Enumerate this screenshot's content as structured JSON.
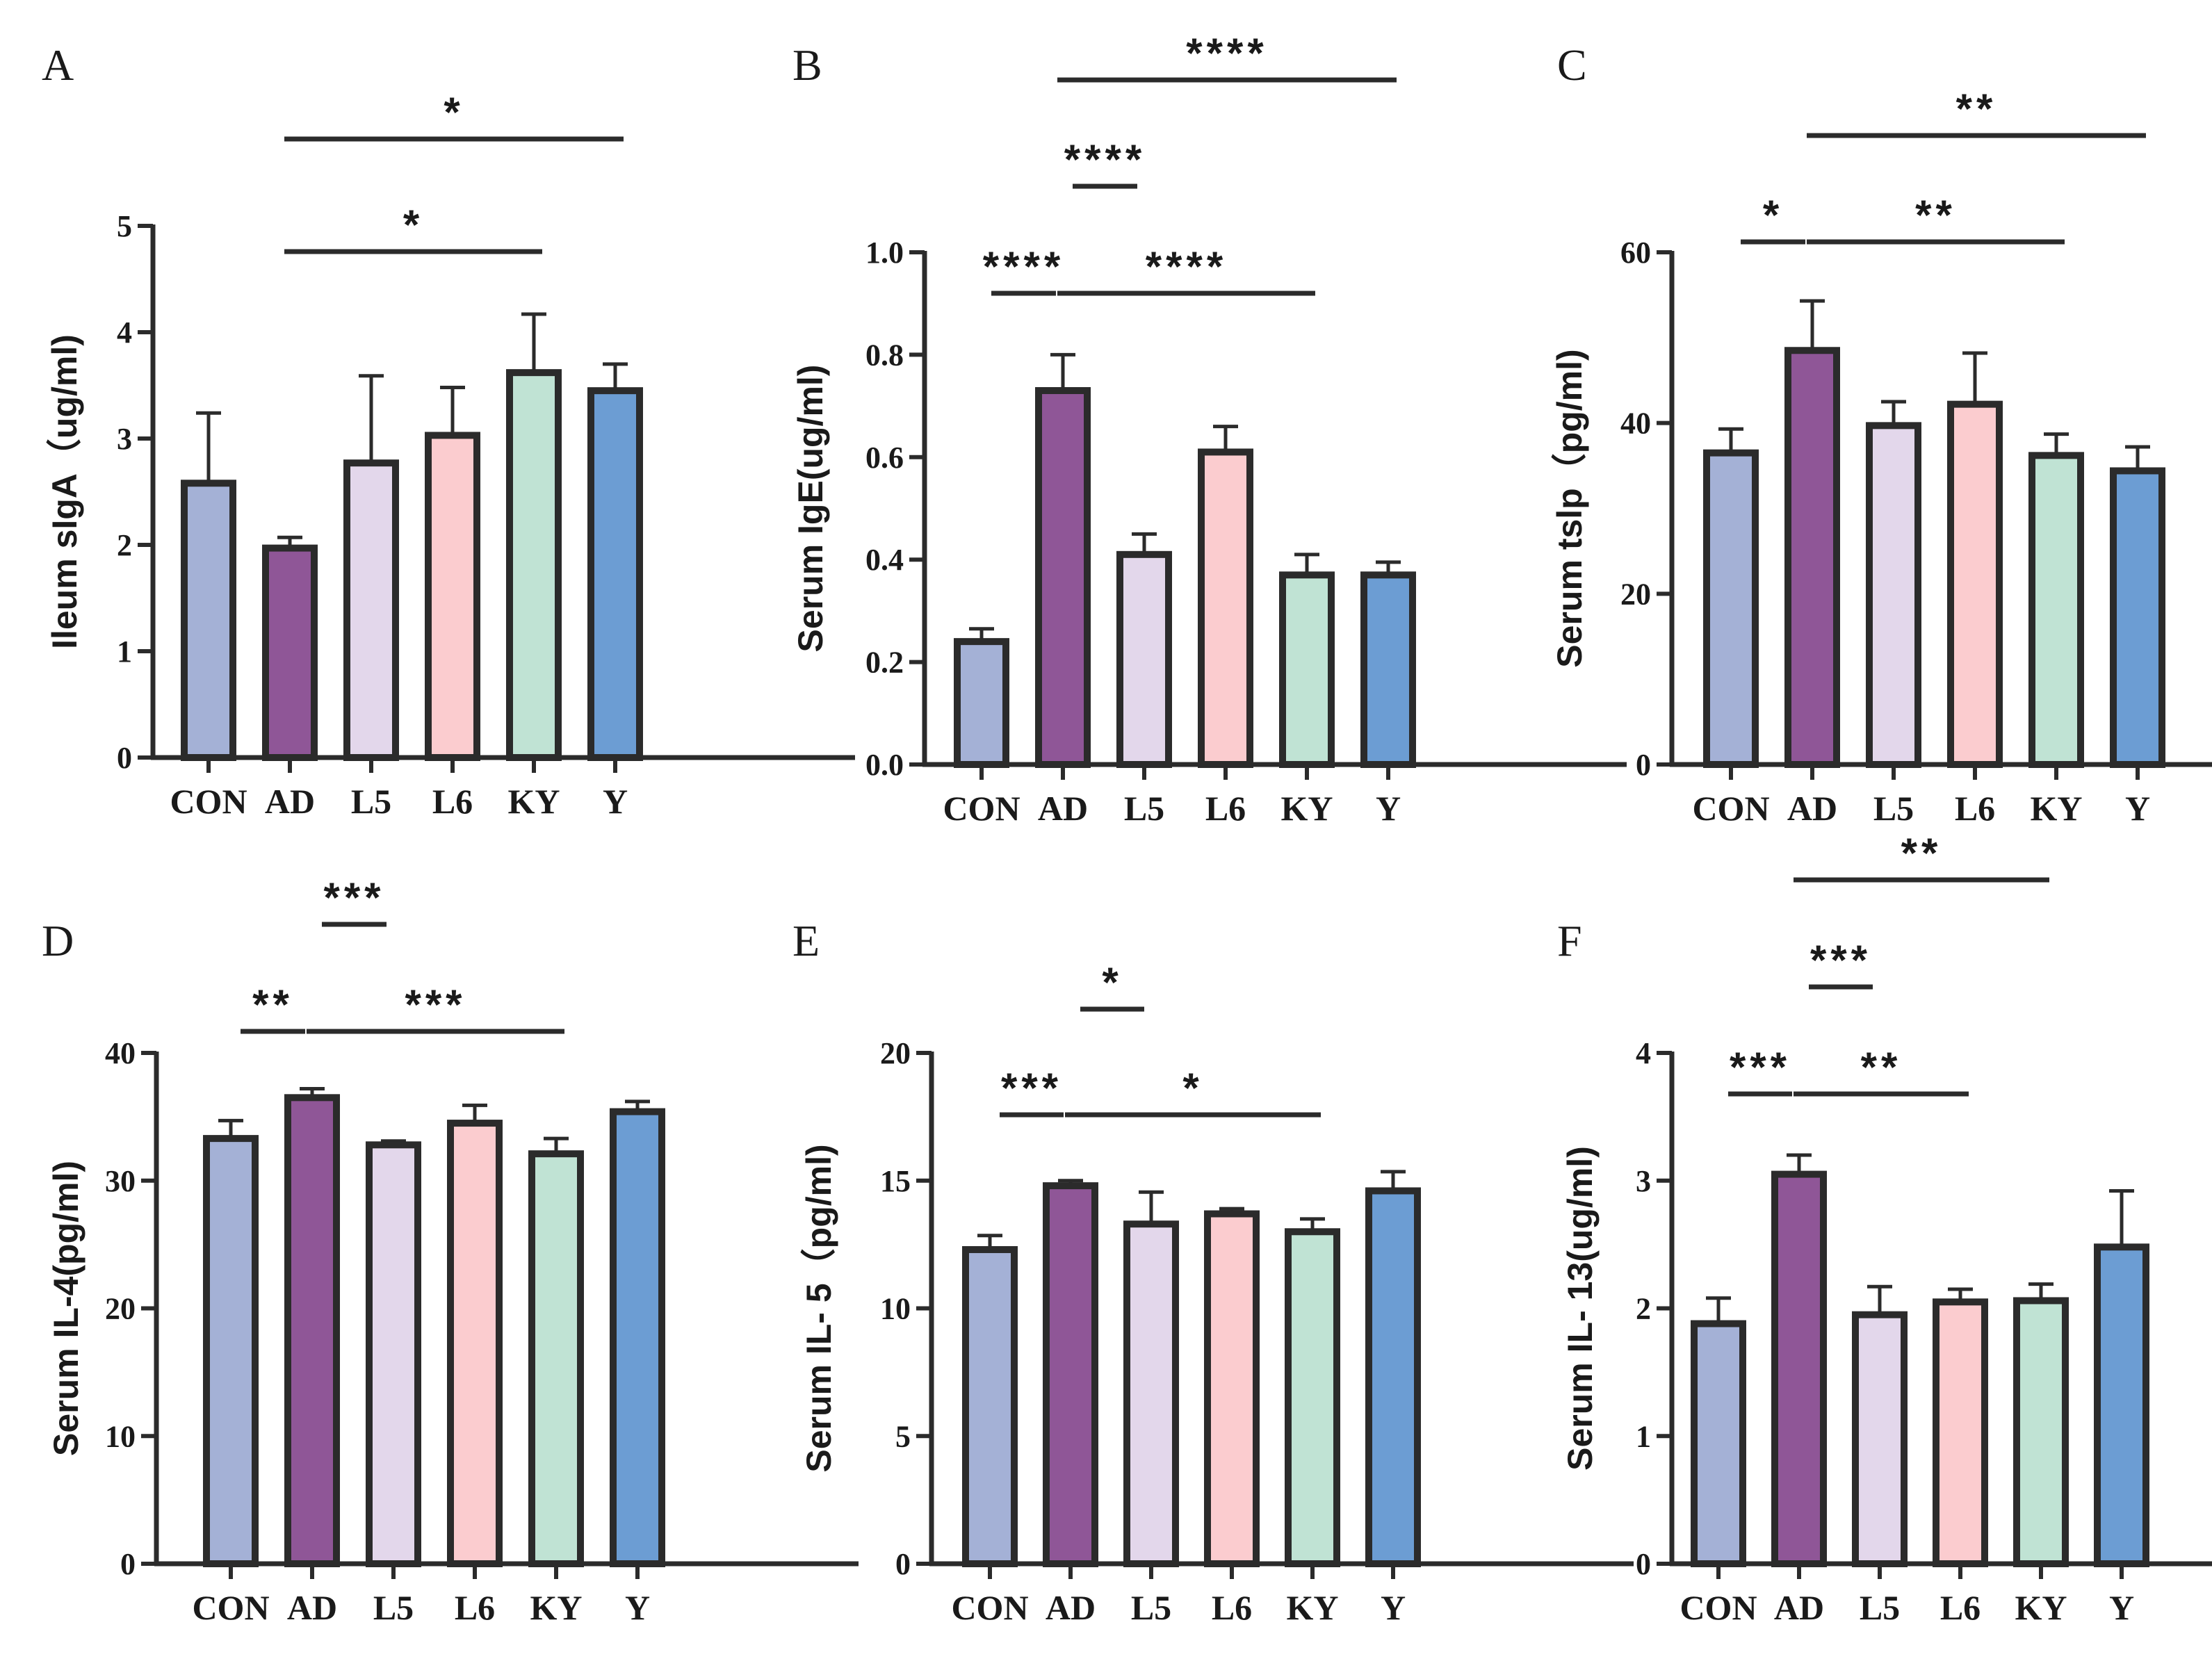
{
  "chart_data": [
    {
      "panel": "A",
      "type": "bar",
      "ylabel": "Ileum sIgA（ug/ml)",
      "categories": [
        "CON",
        "AD",
        "L5",
        "L6",
        "KY",
        "Y"
      ],
      "values": [
        2.58,
        1.97,
        2.77,
        3.03,
        3.62,
        3.45
      ],
      "errors": [
        0.66,
        0.1,
        0.82,
        0.45,
        0.55,
        0.25
      ],
      "yticks": [
        "0",
        "1",
        "2",
        "3",
        "4",
        "5"
      ],
      "ylim": [
        0,
        5
      ],
      "colors": [
        "#a4b1d6",
        "#8f5697",
        "#e3d7eb",
        "#fbcccf",
        "#c0e3d4",
        "#6c9dd3"
      ],
      "significance": [
        {
          "from": "AD",
          "to": "Y",
          "label": "*"
        },
        {
          "from": "AD",
          "to": "KY",
          "label": "*"
        }
      ]
    },
    {
      "panel": "B",
      "type": "bar",
      "ylabel": "Serum IgE(ug/ml)",
      "categories": [
        "CON",
        "AD",
        "L5",
        "L6",
        "KY",
        "Y"
      ],
      "values": [
        0.24,
        0.73,
        0.41,
        0.61,
        0.37,
        0.37
      ],
      "errors": [
        0.025,
        0.07,
        0.04,
        0.05,
        0.04,
        0.025
      ],
      "yticks": [
        "0.0",
        "0.2",
        "0.4",
        "0.6",
        "0.8",
        "1.0"
      ],
      "ylim": [
        0,
        1.0
      ],
      "colors": [
        "#a4b1d6",
        "#8f5697",
        "#e3d7eb",
        "#fbcccf",
        "#c0e3d4",
        "#6c9dd3"
      ],
      "significance": [
        {
          "from": "AD",
          "to": "Y",
          "label": "****"
        },
        {
          "from": "AD",
          "to": "L5",
          "label": "****"
        },
        {
          "from": "CON",
          "to": "AD",
          "label": "****"
        },
        {
          "from": "AD",
          "to": "KY",
          "label": "****"
        }
      ]
    },
    {
      "panel": "C",
      "type": "bar",
      "ylabel": "Serum tslp（pg/ml)",
      "categories": [
        "CON",
        "AD",
        "L5",
        "L6",
        "KY",
        "Y"
      ],
      "values": [
        36.5,
        48.5,
        39.7,
        42.2,
        36.2,
        34.4
      ],
      "errors": [
        2.8,
        5.8,
        2.8,
        6.0,
        2.5,
        2.8
      ],
      "yticks": [
        "0",
        "20",
        "40",
        "60"
      ],
      "ylim": [
        0,
        60
      ],
      "colors": [
        "#a4b1d6",
        "#8f5697",
        "#e3d7eb",
        "#fbcccf",
        "#c0e3d4",
        "#6c9dd3"
      ],
      "significance": [
        {
          "from": "AD",
          "to": "Y",
          "label": "**"
        },
        {
          "from": "CON",
          "to": "AD",
          "label": "*"
        },
        {
          "from": "AD",
          "to": "KY",
          "label": "**"
        }
      ]
    },
    {
      "panel": "D",
      "type": "bar",
      "ylabel": "Serum IL-4(pg/ml)",
      "categories": [
        "CON",
        "AD",
        "L5",
        "L6",
        "KY",
        "Y"
      ],
      "values": [
        33.3,
        36.5,
        32.8,
        34.5,
        32.1,
        35.4
      ],
      "errors": [
        1.4,
        0.7,
        0.3,
        1.4,
        1.2,
        0.8
      ],
      "yticks": [
        "0",
        "10",
        "20",
        "30",
        "40"
      ],
      "ylim": [
        0,
        40
      ],
      "colors": [
        "#a4b1d6",
        "#8f5697",
        "#e3d7eb",
        "#fbcccf",
        "#c0e3d4",
        "#6c9dd3"
      ],
      "significance": [
        {
          "from": "AD",
          "to": "L5",
          "label": "***"
        },
        {
          "from": "CON",
          "to": "AD",
          "label": "**"
        },
        {
          "from": "AD",
          "to": "KY",
          "label": "***"
        }
      ]
    },
    {
      "panel": "E",
      "type": "bar",
      "ylabel": "Serum IL- 5（pg/ml)",
      "categories": [
        "CON",
        "AD",
        "L5",
        "L6",
        "KY",
        "Y"
      ],
      "values": [
        12.3,
        14.8,
        13.3,
        13.7,
        13.0,
        14.6
      ],
      "errors": [
        0.55,
        0.2,
        1.25,
        0.2,
        0.5,
        0.75
      ],
      "yticks": [
        "0",
        "5",
        "10",
        "15",
        "20"
      ],
      "ylim": [
        0,
        20
      ],
      "colors": [
        "#a4b1d6",
        "#8f5697",
        "#e3d7eb",
        "#fbcccf",
        "#c0e3d4",
        "#6c9dd3"
      ],
      "significance": [
        {
          "from": "AD",
          "to": "L5",
          "label": "*"
        },
        {
          "from": "CON",
          "to": "AD",
          "label": "***"
        },
        {
          "from": "AD",
          "to": "KY",
          "label": "*"
        }
      ]
    },
    {
      "panel": "F",
      "type": "bar",
      "ylabel": "Serum IL- 13(ug/ml)",
      "categories": [
        "CON",
        "AD",
        "L5",
        "L6",
        "KY",
        "Y"
      ],
      "values": [
        1.88,
        3.05,
        1.95,
        2.05,
        2.06,
        2.48
      ],
      "errors": [
        0.2,
        0.15,
        0.22,
        0.1,
        0.13,
        0.44
      ],
      "yticks": [
        "0",
        "1",
        "2",
        "3",
        "4"
      ],
      "ylim": [
        0,
        4
      ],
      "colors": [
        "#a4b1d6",
        "#8f5697",
        "#e3d7eb",
        "#fbcccf",
        "#c0e3d4",
        "#6c9dd3"
      ],
      "significance": [
        {
          "from": "AD",
          "to": "KY",
          "label": "**"
        },
        {
          "from": "AD",
          "to": "L5",
          "label": "***"
        },
        {
          "from": "CON",
          "to": "AD",
          "label": "***"
        },
        {
          "from": "AD",
          "to": "L6",
          "label": "**"
        }
      ]
    }
  ]
}
